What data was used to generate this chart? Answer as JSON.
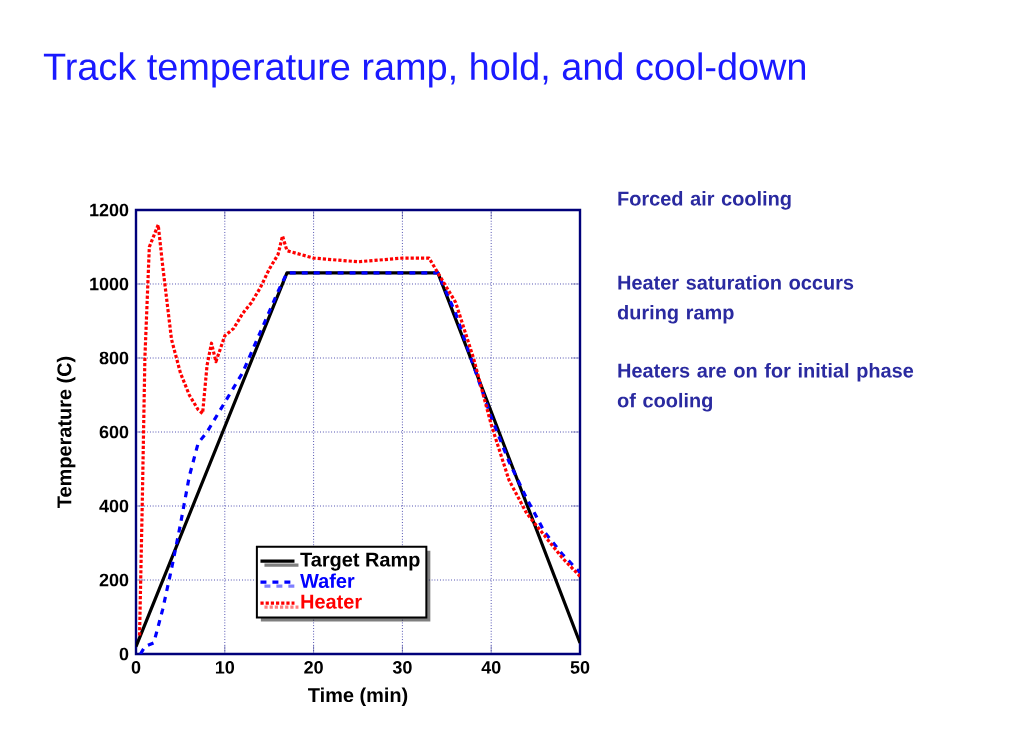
{
  "chart_data": {
    "type": "line",
    "title": "Track temperature ramp, hold, and cool-down",
    "xlabel": "Time (min)",
    "ylabel": "Temperature (C)",
    "xlim": [
      0,
      50
    ],
    "ylim": [
      0,
      1200
    ],
    "xticks": [
      0,
      10,
      20,
      30,
      40,
      50
    ],
    "yticks": [
      0,
      200,
      400,
      600,
      800,
      1000,
      1200
    ],
    "grid": true,
    "legend": "bottom",
    "series": [
      {
        "name": "Target Ramp",
        "color": "#000000",
        "line_style": "solid",
        "x": [
          0,
          17,
          34,
          50
        ],
        "values": [
          20,
          1030,
          1030,
          30
        ]
      },
      {
        "name": "Wafer",
        "color": "#0000ff",
        "line_style": "dashed",
        "x": [
          0.5,
          1,
          2,
          3,
          4,
          5,
          6,
          7,
          8,
          10,
          12,
          14,
          16,
          17,
          20,
          34,
          36,
          38,
          40,
          42,
          44,
          46,
          48,
          50
        ],
        "values": [
          0,
          20,
          30,
          120,
          230,
          350,
          480,
          570,
          600,
          680,
          760,
          870,
          980,
          1030,
          1030,
          1030,
          920,
          780,
          640,
          520,
          420,
          330,
          270,
          220
        ]
      },
      {
        "name": "Heater",
        "color": "#ff0000",
        "line_style": "dotted",
        "x": [
          0.4,
          0.7,
          1,
          1.5,
          2,
          2.5,
          3,
          4,
          5,
          6,
          7,
          7.5,
          8,
          8.5,
          9,
          10,
          11,
          12,
          13,
          14,
          15,
          16,
          16.5,
          17,
          20,
          25,
          30,
          33,
          34,
          36,
          38,
          40,
          42,
          44,
          46,
          48,
          50
        ],
        "values": [
          50,
          400,
          800,
          1100,
          1130,
          1160,
          1050,
          850,
          760,
          700,
          660,
          650,
          780,
          840,
          790,
          860,
          880,
          920,
          950,
          990,
          1040,
          1080,
          1130,
          1090,
          1070,
          1060,
          1070,
          1070,
          1030,
          950,
          800,
          620,
          470,
          380,
          320,
          260,
          210
        ]
      }
    ],
    "annotations": [
      "Forced air cooling",
      "Heater saturation occurs during ramp",
      "Heaters are on for initial phase of cooling"
    ]
  }
}
